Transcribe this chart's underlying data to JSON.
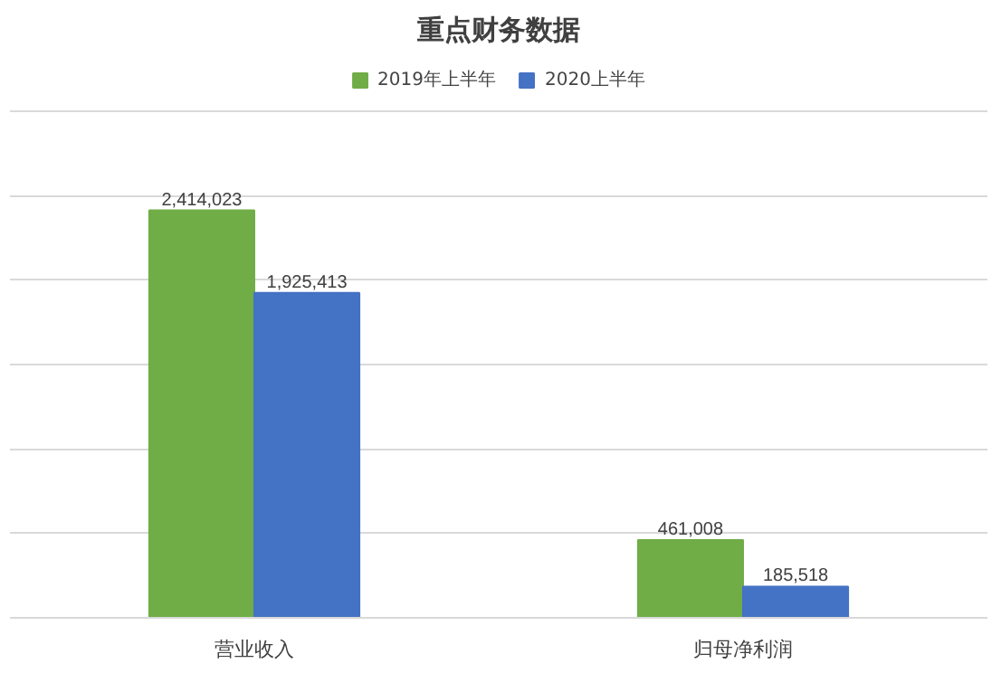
{
  "chart_data": {
    "type": "bar",
    "title": "重点财务数据",
    "categories": [
      "营业收入",
      "归母净利润"
    ],
    "series": [
      {
        "name": "2019年上半年",
        "color": "#70ad47",
        "values": [
          2414023,
          461008
        ],
        "value_labels": [
          "2,414,023",
          "461,008"
        ]
      },
      {
        "name": "2020上半年",
        "color": "#4472c4",
        "values": [
          1925413,
          185518
        ],
        "value_labels": [
          "1,925,413",
          "185,518"
        ]
      }
    ],
    "ylim": [
      0,
      3000000
    ],
    "yticks": [
      {
        "value": 0,
        "label": null
      },
      {
        "value": 500000,
        "label": null
      },
      {
        "value": 1000000,
        "label": null
      },
      {
        "value": 1500000,
        "label": null
      },
      {
        "value": 2000000,
        "label": null
      },
      {
        "value": 2500000,
        "label": null
      },
      {
        "value": 3000000,
        "label": null
      }
    ],
    "tick_labels": "x",
    "grid": "y",
    "legend": "top"
  }
}
